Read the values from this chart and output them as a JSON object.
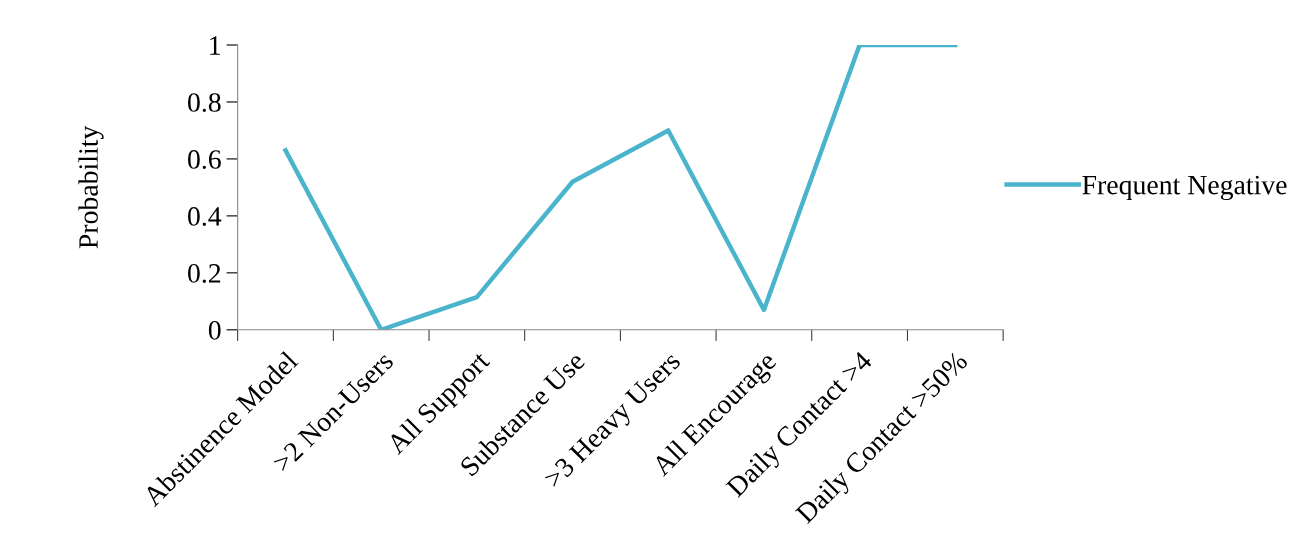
{
  "chart_data": {
    "type": "line",
    "ylabel": "Probability",
    "categories": [
      "Abstinence Model",
      ">2 Non-Users",
      "All Support",
      "Substance Use",
      ">3 Heavy Users",
      "All Encourage",
      "Daily Contact >4",
      "Daily Contact >50%"
    ],
    "series": [
      {
        "name": "Frequent Negative",
        "color": "#4bb4cd",
        "values": [
          0.63,
          0,
          0.115,
          0.52,
          0.7,
          0.07,
          1,
          1
        ]
      }
    ],
    "ylim": [
      0,
      1
    ],
    "yticks": [
      0,
      0.2,
      0.4,
      0.6,
      0.8,
      1
    ],
    "grid": false,
    "legend": "right",
    "marker": "none",
    "line_style": "solid"
  }
}
